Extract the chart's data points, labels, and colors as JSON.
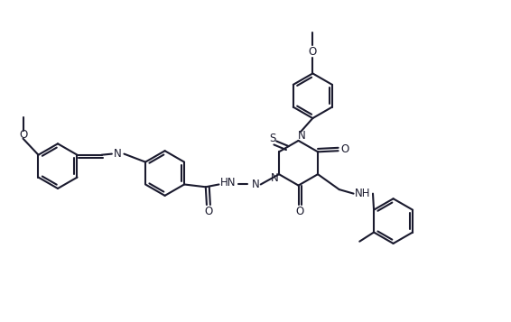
{
  "background_color": "#ffffff",
  "line_color": "#1a1a2e",
  "line_width": 1.5,
  "figsize": [
    5.66,
    3.57
  ],
  "dpi": 100,
  "xlim": [
    0,
    10
  ],
  "ylim": [
    0,
    6.3
  ]
}
